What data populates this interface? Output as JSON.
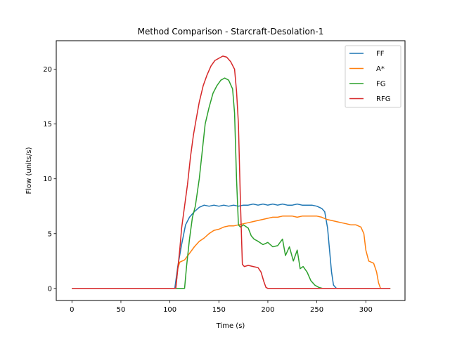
{
  "chart_data": {
    "type": "line",
    "title": "Method Comparison - Starcraft-Desolation-1",
    "xlabel": "Time (s)",
    "ylabel": "Flow (units/s)",
    "xlim": [
      -16,
      340
    ],
    "ylim": [
      -1.1,
      22.6
    ],
    "xticks": [
      0,
      50,
      100,
      150,
      200,
      250,
      300
    ],
    "yticks": [
      0,
      5,
      10,
      15,
      20
    ],
    "grid": false,
    "legend_position": "top-right",
    "series": [
      {
        "name": "FF",
        "color": "#1f77b4",
        "points": [
          [
            0,
            0
          ],
          [
            100,
            0
          ],
          [
            105,
            0
          ],
          [
            108,
            2
          ],
          [
            112,
            4
          ],
          [
            116,
            5.8
          ],
          [
            120,
            6.5
          ],
          [
            125,
            7
          ],
          [
            130,
            7.4
          ],
          [
            135,
            7.6
          ],
          [
            140,
            7.5
          ],
          [
            145,
            7.6
          ],
          [
            150,
            7.5
          ],
          [
            155,
            7.6
          ],
          [
            160,
            7.5
          ],
          [
            165,
            7.6
          ],
          [
            170,
            7.5
          ],
          [
            175,
            7.6
          ],
          [
            180,
            7.6
          ],
          [
            185,
            7.7
          ],
          [
            190,
            7.6
          ],
          [
            195,
            7.7
          ],
          [
            200,
            7.6
          ],
          [
            205,
            7.7
          ],
          [
            210,
            7.6
          ],
          [
            215,
            7.7
          ],
          [
            220,
            7.6
          ],
          [
            225,
            7.6
          ],
          [
            230,
            7.7
          ],
          [
            235,
            7.6
          ],
          [
            240,
            7.6
          ],
          [
            245,
            7.6
          ],
          [
            250,
            7.5
          ],
          [
            255,
            7.3
          ],
          [
            258,
            7.0
          ],
          [
            261,
            5.5
          ],
          [
            263,
            3.5
          ],
          [
            265,
            1.5
          ],
          [
            267,
            0.3
          ],
          [
            270,
            0
          ],
          [
            325,
            0
          ]
        ]
      },
      {
        "name": "A*",
        "color": "#ff7f0e",
        "points": [
          [
            0,
            0
          ],
          [
            100,
            0
          ],
          [
            106,
            0
          ],
          [
            108,
            1.8
          ],
          [
            110,
            2.4
          ],
          [
            115,
            2.6
          ],
          [
            120,
            3.2
          ],
          [
            125,
            3.8
          ],
          [
            130,
            4.3
          ],
          [
            135,
            4.6
          ],
          [
            140,
            5.0
          ],
          [
            145,
            5.3
          ],
          [
            150,
            5.4
          ],
          [
            155,
            5.6
          ],
          [
            160,
            5.7
          ],
          [
            165,
            5.7
          ],
          [
            170,
            5.8
          ],
          [
            175,
            5.9
          ],
          [
            180,
            6.0
          ],
          [
            185,
            6.1
          ],
          [
            190,
            6.2
          ],
          [
            195,
            6.3
          ],
          [
            200,
            6.4
          ],
          [
            205,
            6.5
          ],
          [
            210,
            6.5
          ],
          [
            215,
            6.6
          ],
          [
            220,
            6.6
          ],
          [
            225,
            6.6
          ],
          [
            230,
            6.5
          ],
          [
            235,
            6.6
          ],
          [
            240,
            6.6
          ],
          [
            245,
            6.6
          ],
          [
            250,
            6.6
          ],
          [
            255,
            6.5
          ],
          [
            260,
            6.3
          ],
          [
            265,
            6.2
          ],
          [
            270,
            6.1
          ],
          [
            275,
            6.0
          ],
          [
            280,
            5.9
          ],
          [
            285,
            5.8
          ],
          [
            290,
            5.8
          ],
          [
            295,
            5.6
          ],
          [
            298,
            5.0
          ],
          [
            300,
            3.5
          ],
          [
            303,
            2.5
          ],
          [
            308,
            2.3
          ],
          [
            311,
            1.5
          ],
          [
            313,
            0.5
          ],
          [
            315,
            0
          ],
          [
            325,
            0
          ]
        ]
      },
      {
        "name": "FG",
        "color": "#2ca02c",
        "points": [
          [
            0,
            0
          ],
          [
            100,
            0
          ],
          [
            112,
            0
          ],
          [
            115,
            0
          ],
          [
            117,
            2
          ],
          [
            120,
            4.5
          ],
          [
            123,
            6.5
          ],
          [
            126,
            7.5
          ],
          [
            130,
            10
          ],
          [
            133,
            12.5
          ],
          [
            136,
            15
          ],
          [
            140,
            16.5
          ],
          [
            144,
            17.8
          ],
          [
            148,
            18.5
          ],
          [
            152,
            19
          ],
          [
            156,
            19.2
          ],
          [
            160,
            19
          ],
          [
            164,
            18.2
          ],
          [
            166,
            16
          ],
          [
            168,
            10
          ],
          [
            170,
            5.8
          ],
          [
            172,
            5.6
          ],
          [
            175,
            5.8
          ],
          [
            180,
            5.5
          ],
          [
            183,
            4.8
          ],
          [
            186,
            4.5
          ],
          [
            190,
            4.3
          ],
          [
            195,
            4.0
          ],
          [
            200,
            4.2
          ],
          [
            205,
            3.8
          ],
          [
            210,
            3.9
          ],
          [
            215,
            4.5
          ],
          [
            218,
            3.0
          ],
          [
            222,
            3.8
          ],
          [
            226,
            2.5
          ],
          [
            230,
            3.5
          ],
          [
            233,
            1.8
          ],
          [
            236,
            2.0
          ],
          [
            240,
            1.5
          ],
          [
            244,
            0.7
          ],
          [
            248,
            0.3
          ],
          [
            252,
            0.1
          ],
          [
            256,
            0
          ],
          [
            325,
            0
          ]
        ]
      },
      {
        "name": "RFG",
        "color": "#d62728",
        "points": [
          [
            0,
            0
          ],
          [
            100,
            0
          ],
          [
            106,
            0
          ],
          [
            110,
            3.5
          ],
          [
            112,
            5.5
          ],
          [
            115,
            7.5
          ],
          [
            118,
            9.5
          ],
          [
            121,
            12
          ],
          [
            124,
            14
          ],
          [
            127,
            15.5
          ],
          [
            130,
            17
          ],
          [
            134,
            18.5
          ],
          [
            138,
            19.5
          ],
          [
            142,
            20.3
          ],
          [
            146,
            20.8
          ],
          [
            150,
            21
          ],
          [
            154,
            21.2
          ],
          [
            158,
            21.1
          ],
          [
            162,
            20.7
          ],
          [
            166,
            20
          ],
          [
            168,
            18
          ],
          [
            170,
            15
          ],
          [
            172,
            8
          ],
          [
            174,
            2.2
          ],
          [
            176,
            2.0
          ],
          [
            180,
            2.1
          ],
          [
            185,
            2.0
          ],
          [
            190,
            1.9
          ],
          [
            193,
            1.5
          ],
          [
            196,
            0.6
          ],
          [
            198,
            0.1
          ],
          [
            200,
            0
          ],
          [
            325,
            0
          ]
        ]
      }
    ]
  }
}
